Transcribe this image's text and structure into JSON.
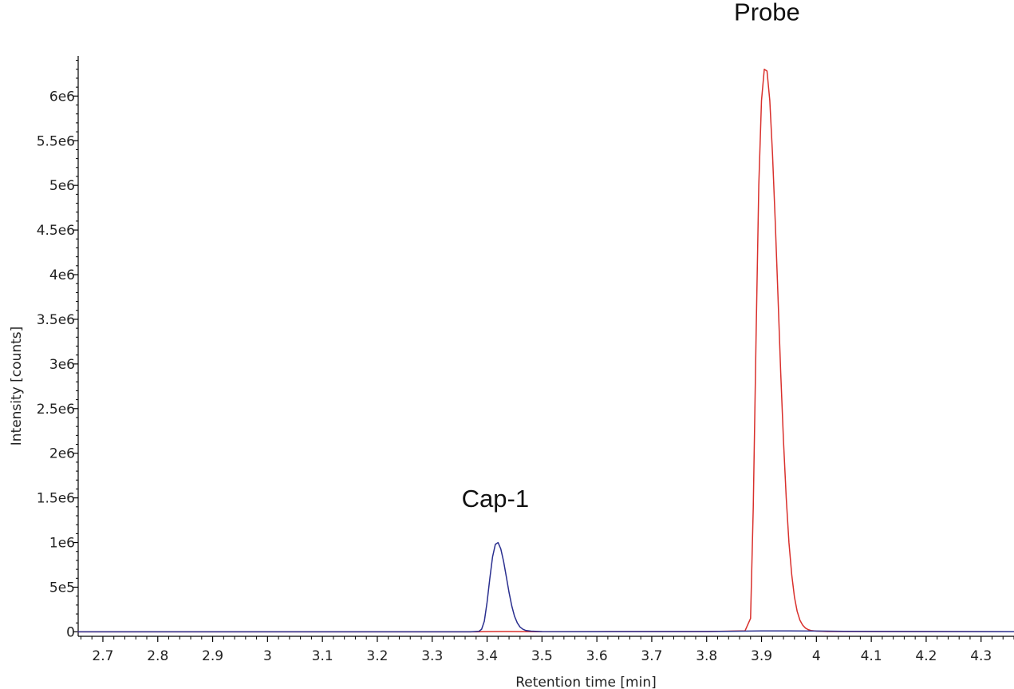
{
  "chart_data": {
    "type": "line",
    "title": "",
    "xlabel": "Retention time [min]",
    "ylabel": "Intensity [counts]",
    "xlim": [
      2.655,
      4.36
    ],
    "ylim": [
      -50000,
      6450000
    ],
    "x_tick_values": [
      2.7,
      2.8,
      2.9,
      3.0,
      3.1,
      3.2,
      3.3,
      3.4,
      3.5,
      3.6,
      3.7,
      3.8,
      3.9,
      4.0,
      4.1,
      4.2,
      4.3
    ],
    "x_tick_labels": [
      "2.7",
      "2.8",
      "2.9",
      "3",
      "3.1",
      "3.2",
      "3.3",
      "3.4",
      "3.5",
      "3.6",
      "3.7",
      "3.8",
      "3.9",
      "4",
      "4.1",
      "4.2",
      "4.3"
    ],
    "y_tick_values": [
      0,
      500000,
      1000000,
      1500000,
      2000000,
      2500000,
      3000000,
      3500000,
      4000000,
      4500000,
      5000000,
      5500000,
      6000000
    ],
    "y_tick_labels": [
      "0",
      "5e5",
      "1e6",
      "1.5e6",
      "2e6",
      "2.5e6",
      "3e6",
      "3.5e6",
      "4e6",
      "4.5e6",
      "5e6",
      "5.5e6",
      "6e6"
    ],
    "grid": false,
    "series": [
      {
        "color": "#d9302c",
        "x": [
          2.655,
          3.38,
          3.4,
          3.43,
          3.46,
          3.5,
          3.8,
          3.87,
          3.88,
          3.885,
          3.89,
          3.895,
          3.9,
          3.905,
          3.91,
          3.915,
          3.92,
          3.925,
          3.93,
          3.935,
          3.94,
          3.945,
          3.95,
          3.955,
          3.96,
          3.965,
          3.97,
          3.975,
          3.98,
          3.985,
          3.99,
          4.0,
          4.02,
          4.36
        ],
        "y": [
          0,
          0,
          3000,
          4000,
          3000,
          2000,
          3000,
          12000,
          150000,
          1400000,
          3300000,
          5000000,
          5950000,
          6300000,
          6280000,
          5950000,
          5350000,
          4600000,
          3750000,
          2900000,
          2150000,
          1500000,
          1000000,
          640000,
          390000,
          230000,
          130000,
          75000,
          42000,
          25000,
          15000,
          8000,
          4000,
          2000
        ]
      },
      {
        "color": "#2a2f8f",
        "x": [
          2.655,
          3.37,
          3.385,
          3.39,
          3.395,
          3.4,
          3.405,
          3.41,
          3.415,
          3.42,
          3.425,
          3.43,
          3.435,
          3.44,
          3.445,
          3.45,
          3.455,
          3.46,
          3.465,
          3.47,
          3.48,
          3.5,
          3.6,
          3.8,
          3.9,
          3.95,
          4.0,
          4.05,
          4.36
        ],
        "y": [
          0,
          0,
          5000,
          30000,
          120000,
          330000,
          600000,
          840000,
          980000,
          1000000,
          930000,
          790000,
          620000,
          440000,
          290000,
          175000,
          100000,
          55000,
          30000,
          16000,
          8000,
          3000,
          2000,
          4000,
          10000,
          10000,
          9000,
          5000,
          2000
        ]
      }
    ],
    "annotations": [
      {
        "text": "Cap-1",
        "x": 3.415,
        "y": 1400000
      },
      {
        "text": "Probe",
        "x": 3.91,
        "y": 6850000
      }
    ]
  }
}
